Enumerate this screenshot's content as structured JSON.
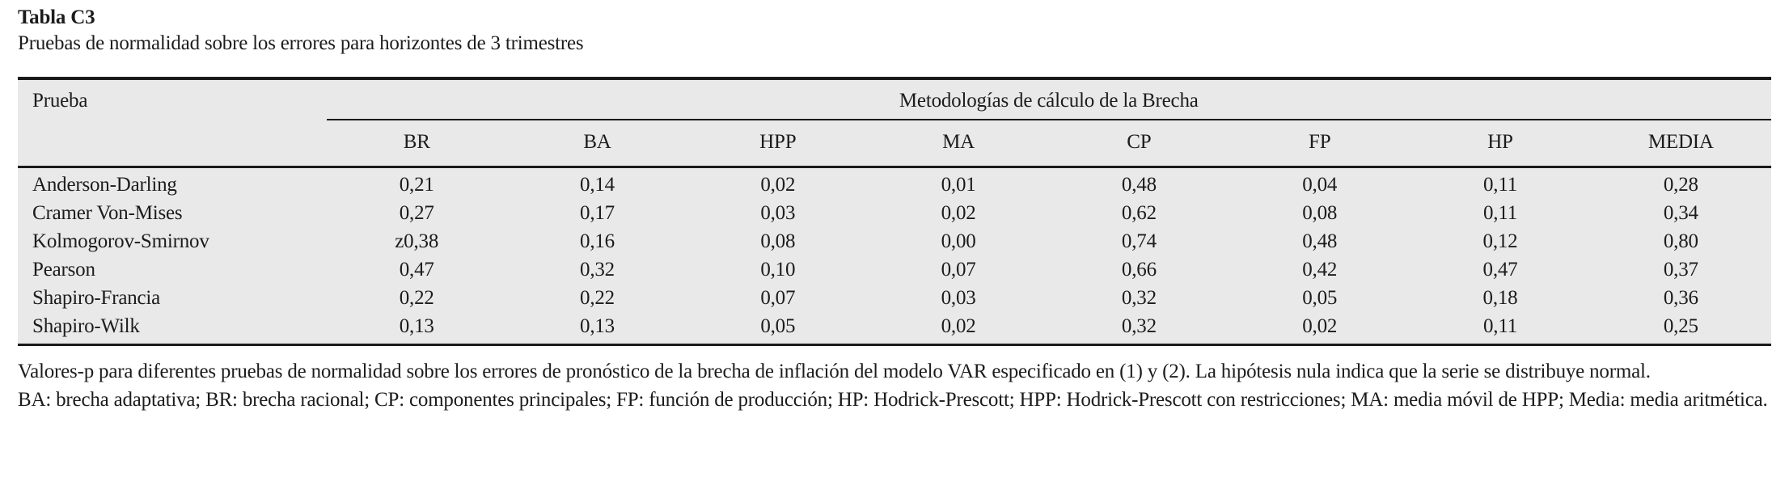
{
  "title": "Tabla C3",
  "subtitle": "Pruebas de normalidad sobre los errores para horizontes de 3 trimestres",
  "table": {
    "row_header": "Prueba",
    "group_header": "Metodologías de cálculo de la Brecha",
    "columns": [
      "BR",
      "BA",
      "HPP",
      "MA",
      "CP",
      "FP",
      "HP",
      "MEDIA"
    ],
    "rows": [
      {
        "label": "Anderson-Darling",
        "values": [
          "0,21",
          "0,14",
          "0,02",
          "0,01",
          "0,48",
          "0,04",
          "0,11",
          "0,28"
        ]
      },
      {
        "label": "Cramer Von-Mises",
        "values": [
          "0,27",
          "0,17",
          "0,03",
          "0,02",
          "0,62",
          "0,08",
          "0,11",
          "0,34"
        ]
      },
      {
        "label": "Kolmogorov-Smirnov",
        "values": [
          "z0,38",
          "0,16",
          "0,08",
          "0,00",
          "0,74",
          "0,48",
          "0,12",
          "0,80"
        ]
      },
      {
        "label": "Pearson",
        "values": [
          "0,47",
          "0,32",
          "0,10",
          "0,07",
          "0,66",
          "0,42",
          "0,47",
          "0,37"
        ]
      },
      {
        "label": "Shapiro-Francia",
        "values": [
          "0,22",
          "0,22",
          "0,07",
          "0,03",
          "0,32",
          "0,05",
          "0,18",
          "0,36"
        ]
      },
      {
        "label": "Shapiro-Wilk",
        "values": [
          "0,13",
          "0,13",
          "0,05",
          "0,02",
          "0,32",
          "0,02",
          "0,11",
          "0,25"
        ]
      }
    ]
  },
  "notes": {
    "pvalues": "Valores-p para diferentes pruebas de normalidad sobre los errores de pronóstico de la brecha de inflación del modelo VAR especificado en (1) y (2). La hipótesis nula indica que la serie se distribuye normal.",
    "abbreviations": "BA: brecha adaptativa; BR: brecha racional; CP: componentes principales; FP: función de producción; HP: Hodrick-Prescott; HPP: Hodrick-Prescott con restricciones; MA: media móvil de HPP; Media: media aritmética."
  },
  "colors": {
    "table_background": "#e8e9e8",
    "rule": "#1a1a1a",
    "text": "#1c1c1c"
  }
}
